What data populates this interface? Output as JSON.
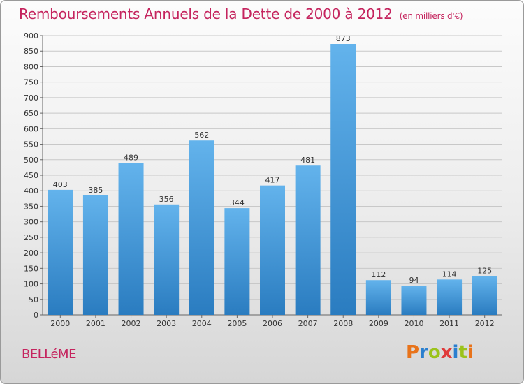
{
  "title": "Remboursements Annuels de la Dette de 2000 à 2012",
  "unit_note": "(en milliers d'€)",
  "commune": "BELLéME",
  "logo": {
    "letters": [
      "P",
      "r",
      "o",
      "x",
      "i",
      "t",
      "i"
    ],
    "colors": [
      "#e8731a",
      "#2a7fcf",
      "#9bc31b",
      "#e03b3b",
      "#2a7fcf",
      "#9bc31b",
      "#e8731a"
    ]
  },
  "colors": {
    "title": "#c5245e",
    "bar_top": "#63b3ec",
    "bar_bottom": "#2a7cc0"
  },
  "chart_data": {
    "type": "bar",
    "categories": [
      "2000",
      "2001",
      "2002",
      "2003",
      "2004",
      "2005",
      "2006",
      "2007",
      "2008",
      "2009",
      "2010",
      "2011",
      "2012"
    ],
    "values": [
      403,
      385,
      489,
      356,
      562,
      344,
      417,
      481,
      873,
      112,
      94,
      114,
      125
    ],
    "ylim": [
      0,
      900
    ],
    "yticks": [
      0,
      50,
      100,
      150,
      200,
      250,
      300,
      350,
      400,
      450,
      500,
      550,
      600,
      650,
      700,
      750,
      800,
      850,
      900
    ],
    "grid": true,
    "xlabel": "",
    "ylabel": ""
  }
}
